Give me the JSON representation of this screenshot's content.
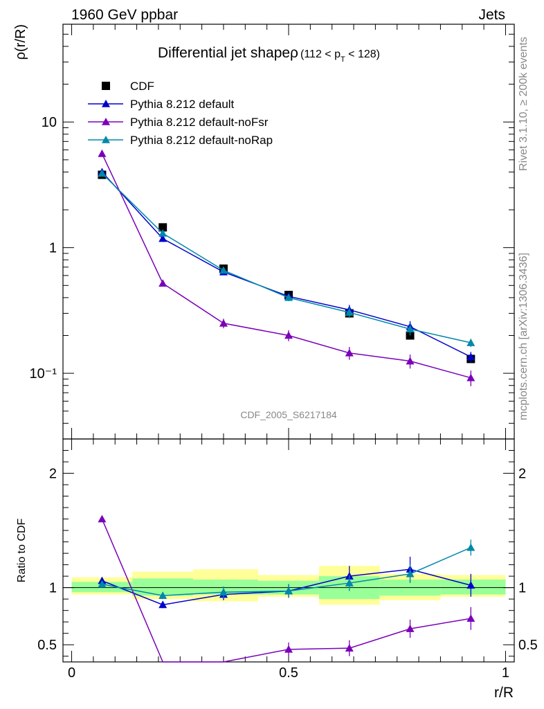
{
  "header": {
    "left": "1960 GeV ppbar",
    "right": "Jets"
  },
  "side_labels": {
    "top": "Rivet 3.1.10, ≥ 200k events",
    "bottom": "mcplots.cern.ch [arXiv:1306.3436]"
  },
  "main": {
    "title": "Differential jet shapeρ",
    "title_range": "(112 < p",
    "title_sub": "T",
    "title_range_end": " < 128)",
    "watermark": "CDF_2005_S6217184"
  },
  "colors": {
    "cdf": "#000000",
    "default": "#0000cc",
    "noFsr": "#7a00b8",
    "noRap": "#0088aa",
    "band_inner": "#99ff99",
    "band_outer": "#ffff99"
  },
  "chart_data": [
    {
      "type": "scatter",
      "ylabel": "ρ(r/R)",
      "yscale": "log",
      "ylim": [
        0.03,
        60
      ],
      "xlim": [
        -0.02,
        1.02
      ],
      "y_tick_labels": [
        "10⁻¹",
        "1",
        "10"
      ],
      "legend": [
        "CDF",
        "Pythia 8.212 default",
        "Pythia 8.212 default-noFsr",
        "Pythia 8.212 default-noRap"
      ],
      "legend_position": "top-left",
      "x": [
        0.07,
        0.21,
        0.35,
        0.5,
        0.64,
        0.78,
        0.92
      ],
      "series": [
        {
          "name": "CDF",
          "values": [
            3.8,
            1.45,
            0.68,
            0.42,
            0.3,
            0.2,
            0.13
          ]
        },
        {
          "name": "Pythia 8.212 default",
          "values": [
            4.0,
            1.18,
            0.64,
            0.41,
            0.32,
            0.235,
            0.135
          ],
          "errors": [
            0.12,
            0.05,
            0.03,
            0.025,
            0.03,
            0.025,
            0.013
          ]
        },
        {
          "name": "Pythia 8.212 default-noFsr",
          "values": [
            5.6,
            0.52,
            0.25,
            0.2,
            0.145,
            0.125,
            0.092
          ],
          "errors": [
            0.15,
            0.03,
            0.022,
            0.02,
            0.017,
            0.016,
            0.013
          ]
        },
        {
          "name": "Pythia 8.212 default-noRap",
          "values": [
            3.9,
            1.3,
            0.66,
            0.4,
            0.305,
            0.225,
            0.175
          ],
          "errors": [
            0.12,
            0.05,
            0.03,
            0.025,
            0.03,
            0.025,
            0.013
          ]
        }
      ]
    },
    {
      "type": "scatter",
      "xlabel": "r/R",
      "ylabel": "Ratio to CDF",
      "ylim": [
        0.35,
        2.3
      ],
      "xlim": [
        -0.02,
        1.02
      ],
      "x_tick_labels": [
        "0",
        "0.5",
        "1"
      ],
      "y_tick_labels": [
        "0.5",
        "1",
        "2"
      ],
      "reference_line": 1,
      "x": [
        0.07,
        0.21,
        0.35,
        0.5,
        0.64,
        0.78,
        0.92
      ],
      "bands": {
        "edges": [
          0,
          0.14,
          0.28,
          0.43,
          0.57,
          0.71,
          0.85,
          1.0
        ],
        "inner_low": [
          0.96,
          0.93,
          0.94,
          0.94,
          0.9,
          0.93,
          0.94
        ],
        "inner_high": [
          1.05,
          1.08,
          1.07,
          1.06,
          1.1,
          1.07,
          1.07
        ],
        "outer_low": [
          0.94,
          0.9,
          0.88,
          0.92,
          0.85,
          0.89,
          0.92
        ],
        "outer_high": [
          1.09,
          1.14,
          1.16,
          1.11,
          1.19,
          1.12,
          1.11
        ]
      },
      "series": [
        {
          "name": "Pythia 8.212 default",
          "values": [
            1.06,
            0.85,
            0.94,
            0.97,
            1.1,
            1.16,
            1.02
          ],
          "errors": [
            0.03,
            0.03,
            0.05,
            0.06,
            0.09,
            0.11,
            0.1
          ]
        },
        {
          "name": "Pythia 8.212 default-noFsr",
          "values": [
            1.6,
            0.3,
            0.3,
            0.46,
            0.47,
            0.64,
            0.73
          ],
          "errors": [
            0.0,
            0.0,
            0.0,
            0.06,
            0.07,
            0.08,
            0.1
          ]
        },
        {
          "name": "Pythia 8.212 default-noRap",
          "values": [
            1.03,
            0.93,
            0.96,
            0.97,
            1.04,
            1.12,
            1.35
          ],
          "errors": [
            0.03,
            0.03,
            0.05,
            0.06,
            0.07,
            0.08,
            0.07
          ]
        }
      ]
    }
  ]
}
